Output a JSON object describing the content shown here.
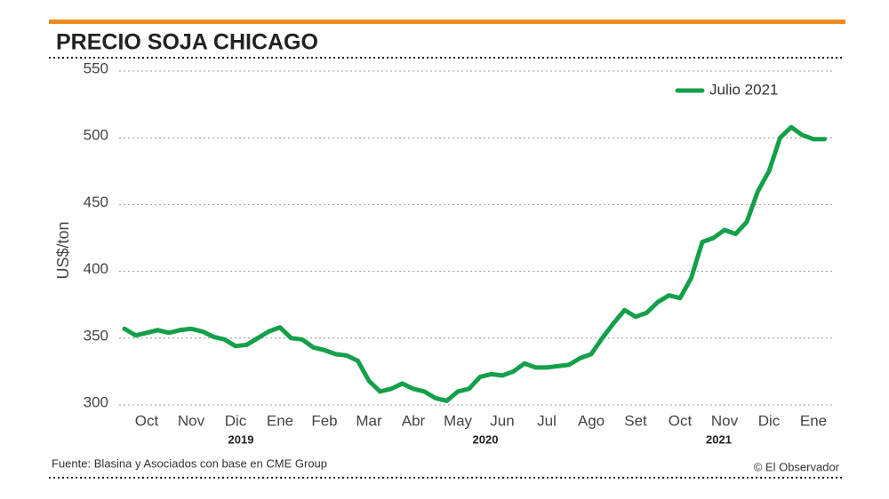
{
  "chart_data": {
    "type": "line",
    "title": "PRECIO SOJA CHICAGO",
    "y_label": "US$/ton",
    "source": "Fuente: Blasina y Asociados con base en CME Group",
    "credit": "© El Observador",
    "categories": [
      null,
      null,
      "Oct",
      null,
      null,
      null,
      "Nov",
      null,
      null,
      null,
      "Dic",
      null,
      null,
      null,
      "Ene",
      null,
      null,
      null,
      "Feb",
      null,
      null,
      null,
      "Mar",
      null,
      null,
      null,
      "Abr",
      null,
      null,
      null,
      "May",
      null,
      null,
      null,
      "Jun",
      null,
      null,
      null,
      "Jul",
      null,
      null,
      null,
      "Ago",
      null,
      null,
      null,
      "Set",
      null,
      null,
      null,
      "Oct",
      null,
      null,
      null,
      "Nov",
      null,
      null,
      null,
      "Dic",
      null,
      null,
      null,
      "Ene",
      null
    ],
    "year_categories": [
      null,
      null,
      null,
      null,
      null,
      null,
      null,
      null,
      null,
      null,
      "2019",
      null,
      null,
      null,
      null,
      null,
      null,
      null,
      null,
      null,
      null,
      null,
      null,
      null,
      null,
      null,
      null,
      null,
      null,
      null,
      null,
      null,
      "2020",
      null,
      null,
      null,
      null,
      null,
      null,
      null,
      null,
      null,
      null,
      null,
      null,
      null,
      null,
      null,
      null,
      null,
      null,
      null,
      null,
      "2021",
      null,
      null,
      null,
      null,
      null,
      null,
      null,
      null,
      null,
      null
    ],
    "series": [
      {
        "name": "Julio 2021",
        "color": "#14a04a",
        "values": [
          357,
          352,
          354,
          356,
          354,
          356,
          357,
          355,
          351,
          349,
          344,
          345,
          350,
          355,
          358,
          350,
          349,
          343,
          341,
          338,
          337,
          333,
          318,
          310,
          312,
          316,
          312,
          310,
          305,
          303,
          310,
          312,
          321,
          323,
          322,
          325,
          331,
          328,
          328,
          329,
          330,
          335,
          338,
          350,
          361,
          371,
          366,
          369,
          377,
          382,
          380,
          395,
          422,
          425,
          431,
          428,
          437,
          460,
          475,
          500,
          508,
          502,
          499,
          499
        ]
      }
    ],
    "ylim": [
      300,
      550
    ],
    "yticks": [
      300,
      350,
      400,
      450,
      500,
      550
    ],
    "grid": true,
    "legend": "top-right"
  }
}
